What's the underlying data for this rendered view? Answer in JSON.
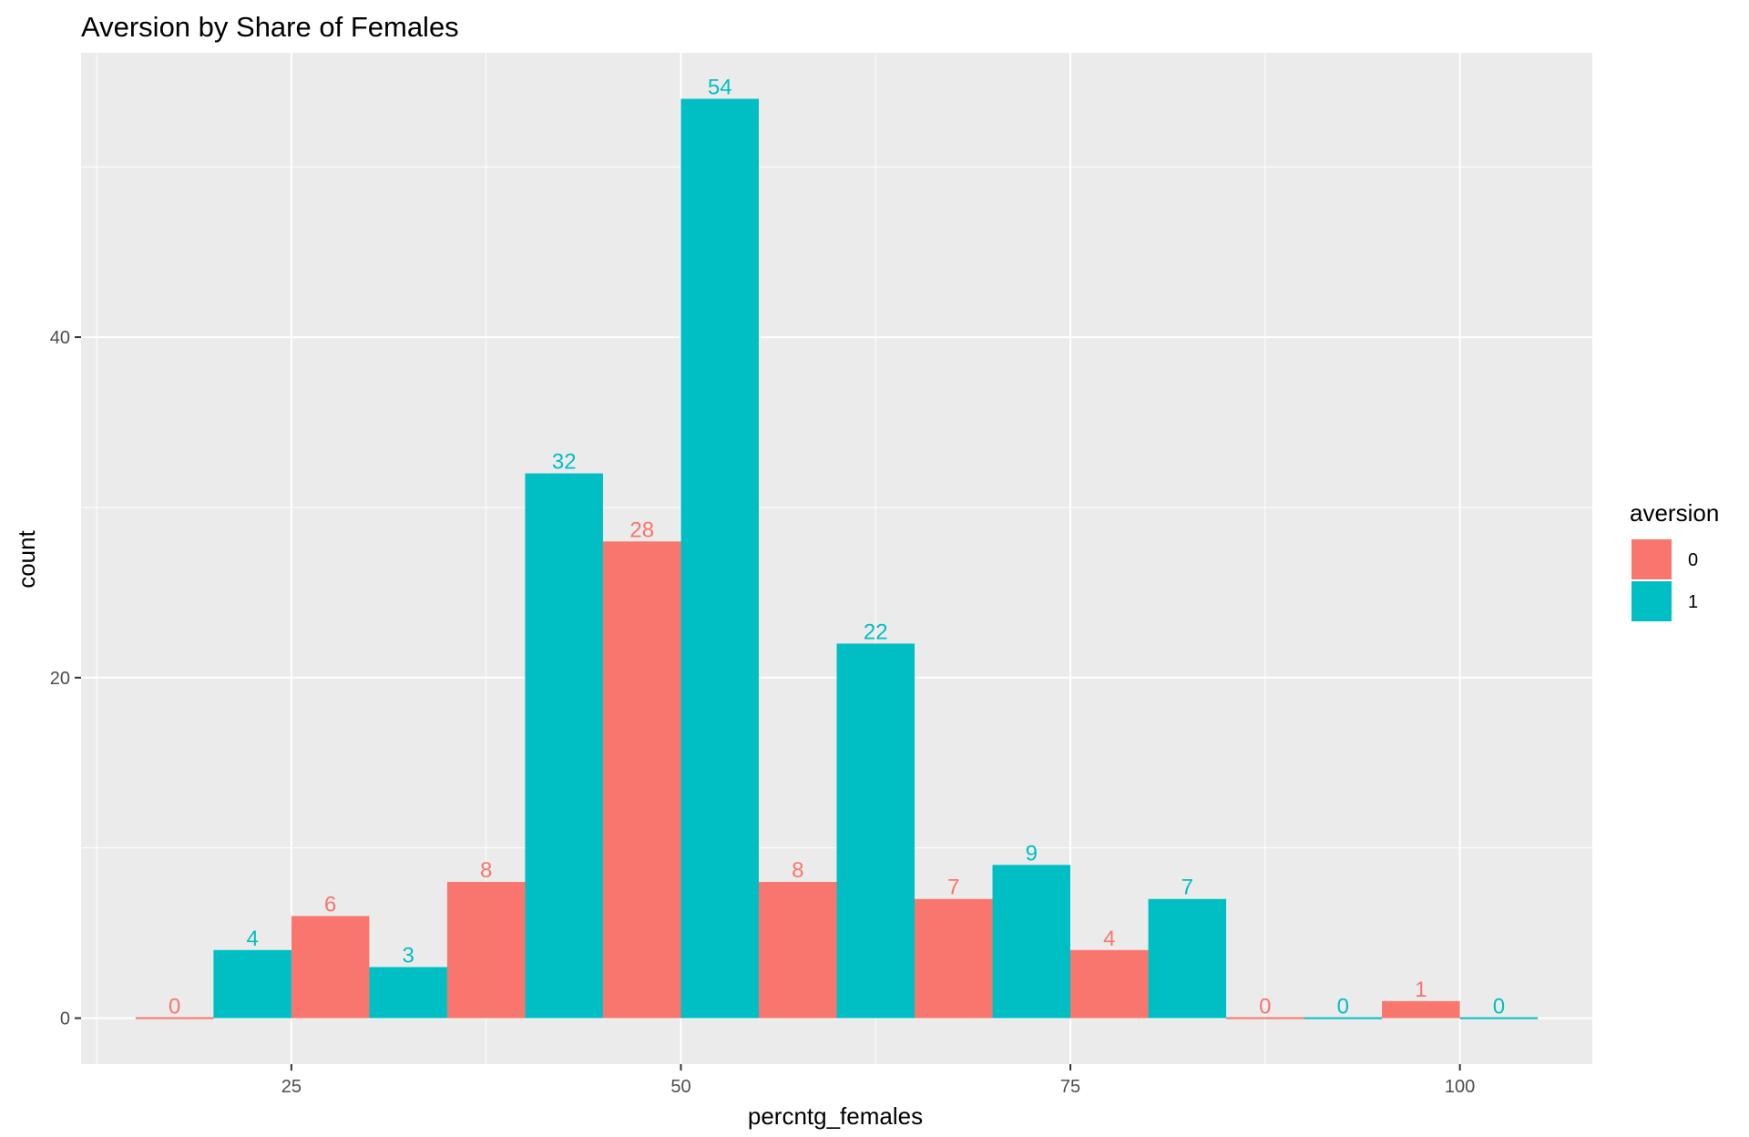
{
  "chart_data": {
    "type": "bar",
    "title": "Aversion by Share of Females",
    "xlabel": "percntg_females",
    "ylabel": "count",
    "xlim": [
      11.5,
      108.5
    ],
    "ylim": [
      -2.7,
      56.7
    ],
    "x_ticks": [
      25,
      50,
      75,
      100
    ],
    "x_minor_ticks": [
      12.5,
      37.5,
      62.5,
      87.5
    ],
    "y_ticks": [
      0,
      20,
      40
    ],
    "y_minor_ticks": [
      10,
      30,
      50
    ],
    "bin_width": 10,
    "grid": true,
    "legend": {
      "title": "aversion",
      "position": "right"
    },
    "series": [
      {
        "name": "0",
        "color": "#F8766D",
        "x": [
          17.5,
          27.5,
          37.5,
          47.5,
          57.5,
          67.5,
          77.5,
          87.5,
          97.5
        ],
        "values": [
          0,
          6,
          8,
          28,
          8,
          7,
          4,
          0,
          1
        ]
      },
      {
        "name": "1",
        "color": "#00BFC4",
        "x": [
          22.5,
          32.5,
          42.5,
          52.5,
          62.5,
          72.5,
          82.5,
          92.5,
          102.5
        ],
        "values": [
          4,
          3,
          32,
          54,
          22,
          9,
          7,
          0,
          0
        ]
      }
    ]
  }
}
